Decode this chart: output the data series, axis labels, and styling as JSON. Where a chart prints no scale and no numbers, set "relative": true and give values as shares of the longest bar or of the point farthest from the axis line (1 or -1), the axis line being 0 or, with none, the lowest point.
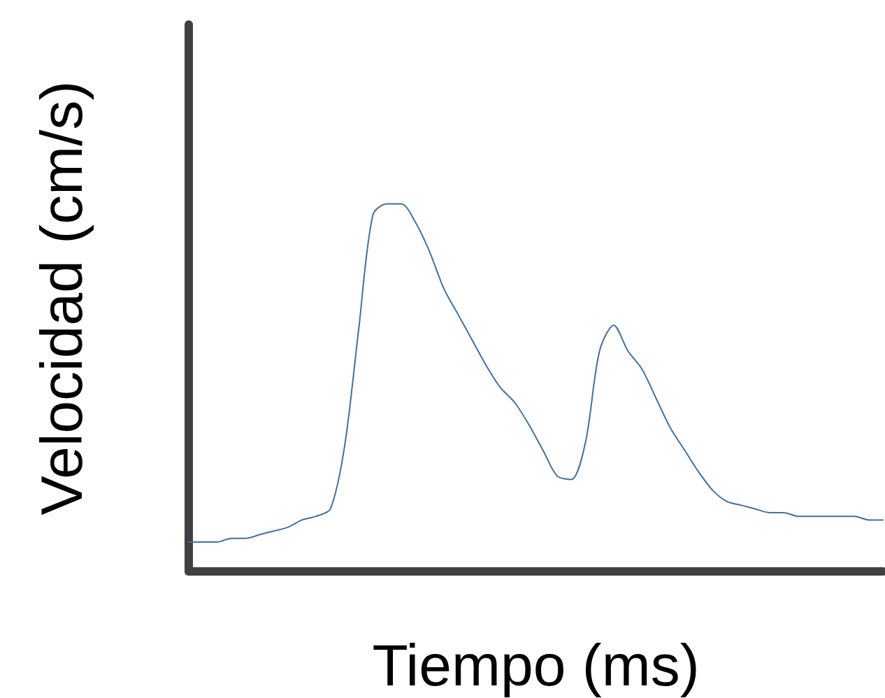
{
  "chart_data": {
    "type": "line",
    "relative": true,
    "xlabel": "Tiempo (ms)",
    "ylabel": "Velocidad (cm/s)",
    "categories": [
      null,
      null,
      null,
      null,
      null,
      null,
      null,
      null,
      null,
      null,
      null,
      null,
      null,
      null,
      null,
      null,
      null,
      null,
      null,
      null,
      null,
      null,
      null,
      null,
      null,
      null,
      null,
      null,
      null,
      null,
      null,
      null,
      null,
      null,
      null,
      null,
      null,
      null,
      null,
      null,
      null,
      null,
      null,
      null,
      null,
      null,
      null,
      null,
      null,
      null
    ],
    "series": [
      {
        "color": "#41719c",
        "values": [
          0.08,
          0.08,
          0.08,
          0.09,
          0.09,
          0.1,
          0.11,
          0.12,
          0.14,
          0.15,
          0.17,
          0.34,
          0.66,
          0.97,
          1,
          1,
          0.95,
          0.87,
          0.77,
          0.7,
          0.63,
          0.56,
          0.5,
          0.46,
          0.4,
          0.33,
          0.26,
          0.25,
          0.35,
          0.6,
          0.67,
          0.6,
          0.55,
          0.47,
          0.39,
          0.33,
          0.27,
          0.22,
          0.19,
          0.18,
          0.17,
          0.16,
          0.16,
          0.15,
          0.15,
          0.15,
          0.15,
          0.15,
          0.14,
          0.14
        ]
      }
    ],
    "grid": false,
    "marker": "none",
    "line_style": "solid"
  }
}
